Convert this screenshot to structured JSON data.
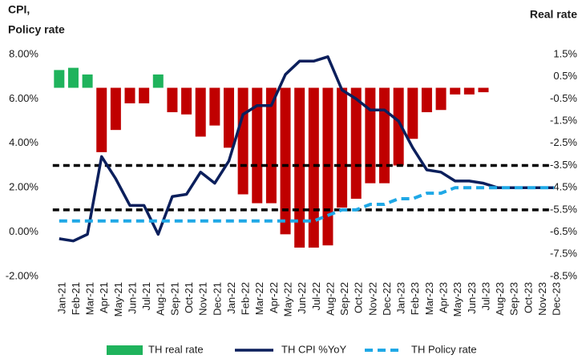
{
  "chart_data": {
    "type": "bar",
    "ylabel": [
      "CPI,",
      "Policy rate"
    ],
    "y2label": "Real rate",
    "categories": [
      "Jan-21",
      "Feb-21",
      "Mar-21",
      "Apr-21",
      "May-21",
      "Jun-21",
      "Jul-21",
      "Aug-21",
      "Sep-21",
      "Oct-21",
      "Nov-21",
      "Dec-21",
      "Jan-22",
      "Feb-22",
      "Mar-22",
      "Apr-22",
      "May-22",
      "Jun-22",
      "Jul-22",
      "Aug-22",
      "Sep-22",
      "Oct-22",
      "Nov-22",
      "Dec-22",
      "Jan-23",
      "Feb-23",
      "Mar-23",
      "Apr-23",
      "May-23",
      "Jun-23",
      "Jul-23",
      "Aug-23",
      "Sep-23",
      "Oct-23",
      "Nov-23",
      "Dec-23"
    ],
    "series": [
      {
        "name": "TH real rate",
        "type": "bar",
        "axis": "y2",
        "color": "#c00000",
        "positive_color": "#1fb35c",
        "values": [
          0.8,
          0.9,
          0.6,
          -2.9,
          -1.9,
          -0.7,
          -0.7,
          0.6,
          -1.1,
          -1.2,
          -2.2,
          -1.7,
          -2.7,
          -4.8,
          -5.2,
          -5.2,
          -6.6,
          -7.2,
          -7.2,
          -7.1,
          -5.4,
          -5.0,
          -4.3,
          -4.3,
          -3.5,
          -2.3,
          -1.1,
          -1.0,
          -0.3,
          -0.3,
          -0.2,
          null,
          null,
          null,
          null,
          null
        ]
      },
      {
        "name": "TH CPI %YoY",
        "type": "line",
        "color": "#0b1f5c",
        "values": [
          -0.3,
          -0.4,
          -0.1,
          3.4,
          2.4,
          1.2,
          1.2,
          -0.1,
          1.6,
          1.7,
          2.7,
          2.2,
          3.2,
          5.3,
          5.7,
          5.7,
          7.1,
          7.7,
          7.7,
          7.9,
          6.4,
          6.0,
          5.5,
          5.5,
          5.0,
          3.8,
          2.8,
          2.7,
          2.3,
          2.3,
          2.2,
          2.0,
          2.0,
          2.0,
          2.0,
          2.0
        ]
      },
      {
        "name": "TH Policy rate",
        "type": "line",
        "dashed": true,
        "color": "#1fa8e6",
        "values": [
          0.5,
          0.5,
          0.5,
          0.5,
          0.5,
          0.5,
          0.5,
          0.5,
          0.5,
          0.5,
          0.5,
          0.5,
          0.5,
          0.5,
          0.5,
          0.5,
          0.5,
          0.5,
          0.5,
          0.75,
          1.0,
          1.0,
          1.25,
          1.25,
          1.5,
          1.5,
          1.75,
          1.75,
          2.0,
          2.0,
          2.0,
          2.0,
          2.0,
          2.0,
          2.0,
          2.0
        ]
      }
    ],
    "reference_lines": [
      3,
      1
    ],
    "reference_color": "#000000",
    "ylim": [
      -2,
      8
    ],
    "yticks": [
      {
        "value": 8,
        "label": "8.00%"
      },
      {
        "value": 6,
        "label": "6.00%"
      },
      {
        "value": 4,
        "label": "4.00%"
      },
      {
        "value": 2,
        "label": "2.00%"
      },
      {
        "value": 0,
        "label": "0.00%"
      },
      {
        "value": -2,
        "label": "-2.00%"
      }
    ],
    "y2lim": [
      -8.5,
      1.5
    ],
    "y2ticks": [
      {
        "value": 1.5,
        "label": "1.5%"
      },
      {
        "value": 0.5,
        "label": "0.5%"
      },
      {
        "value": -0.5,
        "label": "-0.5%"
      },
      {
        "value": -1.5,
        "label": "-1.5%"
      },
      {
        "value": -2.5,
        "label": "-2.5%"
      },
      {
        "value": -3.5,
        "label": "-3.5%"
      },
      {
        "value": -4.5,
        "label": "-4.5%"
      },
      {
        "value": -5.5,
        "label": "-5.5%"
      },
      {
        "value": -6.5,
        "label": "-6.5%"
      },
      {
        "value": -7.5,
        "label": "-7.5%"
      },
      {
        "value": -8.5,
        "label": "-8.5%"
      }
    ],
    "grid": false
  }
}
